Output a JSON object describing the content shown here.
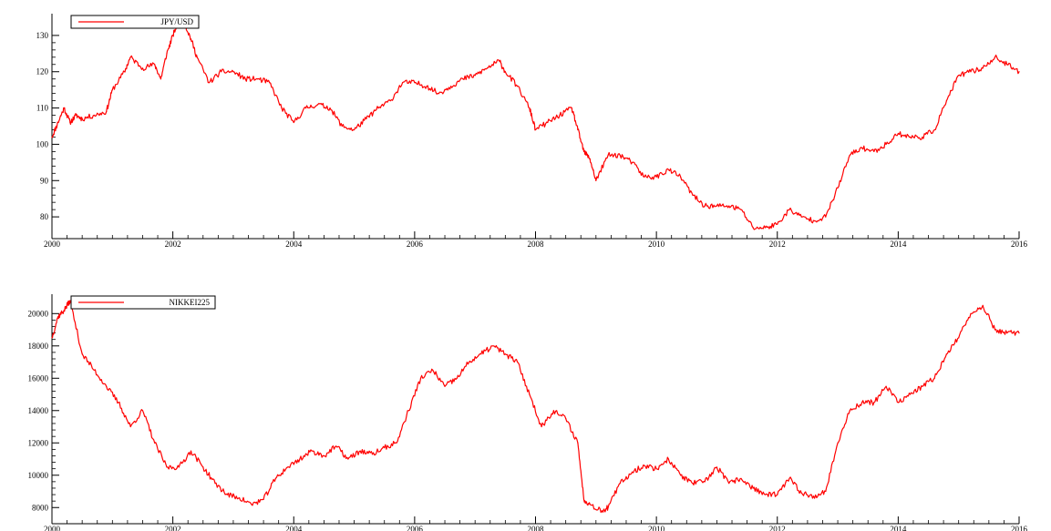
{
  "chart_data": [
    {
      "type": "line",
      "title": "",
      "xlabel": "",
      "ylabel": "",
      "xlim": [
        2000,
        2016
      ],
      "ylim": [
        74,
        136
      ],
      "xticks": [
        2000,
        2002,
        2004,
        2006,
        2008,
        2010,
        2012,
        2014,
        2016
      ],
      "yticks": [
        80,
        90,
        100,
        110,
        120,
        130
      ],
      "legend": "top-left",
      "color": "#ff0000",
      "series": [
        {
          "name": "JPY/USD",
          "x": [
            2000.0,
            2000.1,
            2000.2,
            2000.3,
            2000.4,
            2000.5,
            2000.7,
            2000.9,
            2001.0,
            2001.2,
            2001.3,
            2001.5,
            2001.7,
            2001.8,
            2001.9,
            2002.0,
            2002.1,
            2002.2,
            2002.3,
            2002.4,
            2002.6,
            2002.8,
            2003.0,
            2003.2,
            2003.4,
            2003.6,
            2003.8,
            2004.0,
            2004.2,
            2004.4,
            2004.6,
            2004.8,
            2005.0,
            2005.2,
            2005.4,
            2005.6,
            2005.8,
            2006.0,
            2006.2,
            2006.4,
            2006.6,
            2006.8,
            2007.0,
            2007.2,
            2007.4,
            2007.5,
            2007.7,
            2007.9,
            2008.0,
            2008.2,
            2008.4,
            2008.6,
            2008.7,
            2008.8,
            2008.9,
            2009.0,
            2009.2,
            2009.4,
            2009.6,
            2009.8,
            2010.0,
            2010.2,
            2010.4,
            2010.6,
            2010.8,
            2011.0,
            2011.2,
            2011.4,
            2011.6,
            2011.8,
            2012.0,
            2012.2,
            2012.4,
            2012.6,
            2012.8,
            2013.0,
            2013.2,
            2013.4,
            2013.6,
            2013.8,
            2014.0,
            2014.2,
            2014.4,
            2014.6,
            2014.8,
            2015.0,
            2015.2,
            2015.4,
            2015.6,
            2015.8,
            2016.0
          ],
          "values": [
            102,
            106,
            110,
            106,
            108,
            107,
            108,
            109,
            115,
            120,
            124,
            121,
            122,
            118,
            125,
            130,
            134,
            133,
            129,
            124,
            117,
            120,
            120,
            118,
            118,
            117,
            110,
            106,
            110,
            111,
            110,
            105,
            104,
            107,
            110,
            112,
            117,
            117,
            116,
            114,
            116,
            118,
            119,
            121,
            123,
            120,
            116,
            110,
            104,
            106,
            108,
            110,
            104,
            98,
            96,
            90,
            97,
            97,
            95,
            91,
            91,
            93,
            91,
            86,
            83,
            83,
            83,
            82,
            77,
            77,
            78,
            82,
            80,
            79,
            80,
            88,
            97,
            99,
            98,
            100,
            103,
            102,
            102,
            104,
            112,
            119,
            120,
            121,
            124,
            122,
            120
          ]
        }
      ]
    },
    {
      "type": "line",
      "title": "",
      "xlabel": "",
      "ylabel": "",
      "xlim": [
        2000,
        2016
      ],
      "ylim": [
        7000,
        21200
      ],
      "xticks": [
        2000,
        2002,
        2004,
        2006,
        2008,
        2010,
        2012,
        2014,
        2016
      ],
      "yticks": [
        8000,
        10000,
        12000,
        14000,
        16000,
        18000,
        20000
      ],
      "legend": "top-left",
      "color": "#ff0000",
      "series": [
        {
          "name": "NIKKEI225",
          "x": [
            2000.0,
            2000.1,
            2000.2,
            2000.3,
            2000.5,
            2000.7,
            2000.9,
            2001.1,
            2001.3,
            2001.5,
            2001.7,
            2001.9,
            2002.1,
            2002.3,
            2002.5,
            2002.7,
            2002.9,
            2003.1,
            2003.3,
            2003.5,
            2003.7,
            2003.9,
            2004.1,
            2004.3,
            2004.5,
            2004.7,
            2004.9,
            2005.1,
            2005.3,
            2005.5,
            2005.7,
            2005.9,
            2006.1,
            2006.3,
            2006.5,
            2006.7,
            2006.9,
            2007.1,
            2007.3,
            2007.5,
            2007.7,
            2007.9,
            2008.1,
            2008.3,
            2008.5,
            2008.7,
            2008.8,
            2008.9,
            2009.1,
            2009.2,
            2009.4,
            2009.6,
            2009.8,
            2010.0,
            2010.2,
            2010.4,
            2010.6,
            2010.8,
            2011.0,
            2011.2,
            2011.4,
            2011.6,
            2011.8,
            2012.0,
            2012.2,
            2012.4,
            2012.6,
            2012.8,
            2013.0,
            2013.2,
            2013.4,
            2013.6,
            2013.8,
            2014.0,
            2014.2,
            2014.4,
            2014.6,
            2014.8,
            2015.0,
            2015.2,
            2015.4,
            2015.6,
            2015.8,
            2016.0
          ],
          "values": [
            18500,
            19800,
            20200,
            20800,
            17500,
            16500,
            15500,
            14500,
            13000,
            14000,
            12000,
            10500,
            10500,
            11500,
            10500,
            9500,
            8800,
            8600,
            8200,
            8500,
            9800,
            10500,
            11000,
            11500,
            11200,
            11800,
            11000,
            11500,
            11300,
            11700,
            12000,
            14000,
            16000,
            16500,
            15500,
            16000,
            17000,
            17500,
            18000,
            17500,
            17000,
            15000,
            13000,
            14000,
            13500,
            12000,
            8500,
            8200,
            7800,
            8000,
            9500,
            10200,
            10600,
            10400,
            11000,
            10000,
            9500,
            9600,
            10500,
            9500,
            9800,
            9200,
            8800,
            8800,
            9800,
            8900,
            8700,
            9000,
            12000,
            14000,
            14500,
            14500,
            15500,
            14500,
            15000,
            15500,
            16000,
            17500,
            18500,
            20000,
            20500,
            19000,
            18800,
            18800
          ]
        }
      ]
    }
  ]
}
